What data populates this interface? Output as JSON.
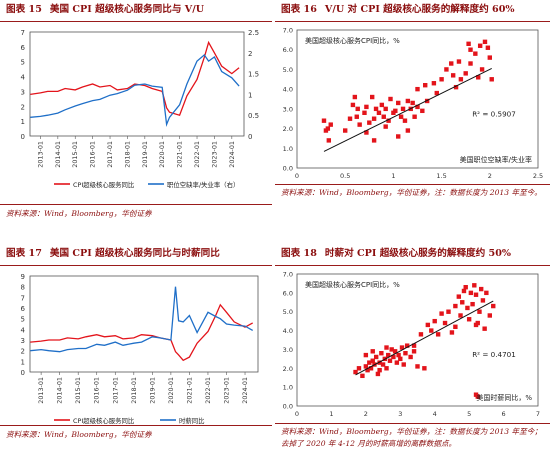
{
  "panels": [
    {
      "number": "图表 15",
      "title": "美国 CPI 超级核心服务同比与 V/U",
      "source": "资料来源：Wind，Bloomberg，华创证券",
      "chart_data": {
        "type": "line",
        "x": [
          "2012-06",
          "2013-01",
          "2013-06",
          "2014-01",
          "2014-06",
          "2015-01",
          "2015-06",
          "2016-01",
          "2016-06",
          "2017-01",
          "2017-06",
          "2018-01",
          "2018-06",
          "2019-01",
          "2019-06",
          "2020-01",
          "2020-04",
          "2020-06",
          "2021-01",
          "2021-06",
          "2022-01",
          "2022-06",
          "2022-09",
          "2023-01",
          "2023-06",
          "2024-01",
          "2024-06"
        ],
        "x_ticks": [
          "2013-01",
          "2014-01",
          "2015-01",
          "2016-01",
          "2017-01",
          "2018-01",
          "2019-01",
          "2020-01",
          "2021-01",
          "2022-01",
          "2023-01",
          "2024-01"
        ],
        "y_left": {
          "ylim": [
            0,
            7
          ],
          "ticks": [
            0,
            1,
            2,
            3,
            4,
            5,
            6,
            7
          ]
        },
        "y_right": {
          "ylim": [
            0,
            2.5
          ],
          "ticks": [
            0,
            0.5,
            1,
            1.5,
            2,
            2.5
          ]
        },
        "series": [
          {
            "name": "CPI超级核心服务同比",
            "axis": "left",
            "color": "#e3141b",
            "values": [
              2.8,
              2.9,
              3.0,
              3.0,
              3.2,
              3.1,
              3.3,
              3.5,
              3.3,
              3.4,
              3.1,
              3.2,
              3.5,
              3.4,
              3.2,
              3.0,
              1.9,
              1.6,
              1.4,
              2.7,
              3.8,
              5.3,
              6.3,
              5.6,
              4.7,
              4.2,
              4.6
            ]
          },
          {
            "name": "职位空缺率/失业率（右）",
            "axis": "right",
            "color": "#1f6fc8",
            "values": [
              0.45,
              0.47,
              0.5,
              0.55,
              0.63,
              0.72,
              0.78,
              0.85,
              0.88,
              0.98,
              1.02,
              1.1,
              1.22,
              1.25,
              1.2,
              1.17,
              0.28,
              0.45,
              0.75,
              1.25,
              1.8,
              1.95,
              1.8,
              1.9,
              1.55,
              1.4,
              1.2
            ]
          }
        ]
      }
    },
    {
      "number": "图表 16",
      "title": "V/U 对 CPI 超级核心服务的解释度约 60%",
      "source": "资料来源：Wind，Bloomberg，华创证券，注：数据长度为 2013 年至今。",
      "chart_data": {
        "type": "scatter",
        "ylabel": "美国超级核心服务CPI同比，%",
        "xlabel": "美国职位空缺率/失业率",
        "xlim": [
          0,
          2.5
        ],
        "ylim": [
          0,
          7
        ],
        "x_ticks": [
          0,
          0.5,
          1,
          1.5,
          2,
          2.5
        ],
        "y_ticks": [
          0,
          1,
          2,
          3,
          4,
          5,
          6,
          7
        ],
        "annotation": "R² = 0.5907",
        "trend": {
          "slope": 2.42,
          "intercept": 0.16
        },
        "color": "#e3141b",
        "points": [
          [
            0.3,
            1.9
          ],
          [
            0.32,
            2.0
          ],
          [
            0.35,
            2.2
          ],
          [
            0.28,
            2.4
          ],
          [
            0.33,
            1.4
          ],
          [
            0.5,
            1.9
          ],
          [
            0.55,
            2.5
          ],
          [
            0.58,
            3.2
          ],
          [
            0.6,
            3.6
          ],
          [
            0.62,
            2.6
          ],
          [
            0.65,
            2.2
          ],
          [
            0.63,
            3.0
          ],
          [
            0.7,
            2.8
          ],
          [
            0.72,
            3.1
          ],
          [
            0.75,
            2.3
          ],
          [
            0.78,
            3.6
          ],
          [
            0.8,
            2.5
          ],
          [
            0.82,
            3.0
          ],
          [
            0.85,
            2.8
          ],
          [
            0.88,
            3.2
          ],
          [
            0.9,
            2.6
          ],
          [
            0.92,
            3.0
          ],
          [
            0.95,
            2.4
          ],
          [
            0.97,
            3.5
          ],
          [
            1.0,
            2.8
          ],
          [
            1.02,
            2.9
          ],
          [
            1.05,
            3.3
          ],
          [
            1.08,
            2.6
          ],
          [
            1.1,
            3.0
          ],
          [
            1.12,
            2.4
          ],
          [
            1.15,
            3.4
          ],
          [
            1.18,
            3.0
          ],
          [
            1.2,
            3.3
          ],
          [
            1.22,
            2.6
          ],
          [
            1.25,
            3.1
          ],
          [
            0.8,
            1.4
          ],
          [
            0.72,
            1.8
          ],
          [
            0.92,
            2.1
          ],
          [
            1.05,
            1.6
          ],
          [
            1.15,
            1.9
          ],
          [
            1.3,
            2.9
          ],
          [
            1.35,
            3.4
          ],
          [
            1.25,
            4.0
          ],
          [
            1.33,
            4.2
          ],
          [
            1.42,
            4.3
          ],
          [
            1.5,
            4.5
          ],
          [
            1.45,
            3.8
          ],
          [
            1.55,
            5.0
          ],
          [
            1.6,
            5.3
          ],
          [
            1.65,
            4.1
          ],
          [
            1.7,
            4.5
          ],
          [
            1.75,
            4.8
          ],
          [
            1.8,
            5.3
          ],
          [
            1.85,
            5.8
          ],
          [
            1.9,
            6.2
          ],
          [
            1.95,
            6.4
          ],
          [
            2.0,
            5.6
          ],
          [
            2.02,
            4.5
          ],
          [
            1.92,
            5.0
          ],
          [
            1.88,
            4.6
          ],
          [
            1.78,
            6.3
          ],
          [
            1.8,
            6.0
          ],
          [
            1.98,
            6.1
          ],
          [
            1.62,
            4.7
          ],
          [
            1.68,
            5.4
          ]
        ]
      }
    },
    {
      "number": "图表 17",
      "title": "美国 CPI 超级核心服务同比与时薪同比",
      "source": "资料来源：Wind，Bloomberg，华创证券",
      "chart_data": {
        "type": "line",
        "x": [
          "2012-06",
          "2013-01",
          "2013-06",
          "2014-01",
          "2014-06",
          "2015-01",
          "2015-06",
          "2016-01",
          "2016-06",
          "2017-01",
          "2017-06",
          "2018-01",
          "2018-06",
          "2019-01",
          "2019-06",
          "2020-01",
          "2020-04",
          "2020-06",
          "2020-09",
          "2021-01",
          "2021-06",
          "2022-01",
          "2022-06",
          "2022-09",
          "2023-01",
          "2023-06",
          "2024-01",
          "2024-06"
        ],
        "x_ticks": [
          "2013-01",
          "2014-01",
          "2015-01",
          "2016-01",
          "2017-01",
          "2018-01",
          "2019-01",
          "2020-01",
          "2021-01",
          "2022-01",
          "2023-01",
          "2024-01"
        ],
        "ylim": [
          0,
          9
        ],
        "y_ticks": [
          0,
          1,
          2,
          3,
          4,
          5,
          6,
          7,
          8,
          9
        ],
        "series": [
          {
            "name": "CPI超级核心服务同比",
            "color": "#e3141b",
            "values": [
              2.8,
              2.9,
              3.0,
              3.0,
              3.2,
              3.1,
              3.3,
              3.5,
              3.3,
              3.4,
              3.1,
              3.2,
              3.5,
              3.4,
              3.2,
              3.0,
              1.9,
              1.6,
              1.1,
              1.4,
              2.7,
              3.8,
              5.3,
              6.3,
              5.6,
              4.7,
              4.2,
              4.6
            ]
          },
          {
            "name": "时薪同比",
            "color": "#1f6fc8",
            "values": [
              2.0,
              2.1,
              2.0,
              1.9,
              2.1,
              2.2,
              2.2,
              2.6,
              2.5,
              2.8,
              2.5,
              2.7,
              2.8,
              3.3,
              3.2,
              3.0,
              8.0,
              4.8,
              4.7,
              5.3,
              3.7,
              5.6,
              5.2,
              5.0,
              4.5,
              4.4,
              4.3,
              3.9
            ]
          }
        ]
      }
    },
    {
      "number": "图表 18",
      "title": "时薪对 CPI 超级核心服务的解释度约 50%",
      "source": "资料来源：Wind，Bloomberg，华创证券，注：数据长度为 2013 年至今；去掉了 2020 年 4-12 月的时薪高增的离群数据点。",
      "chart_data": {
        "type": "scatter",
        "ylabel": "美国超级核心服务CPI同比，%",
        "xlabel": "美国时薪同比，%",
        "xlim": [
          0,
          7
        ],
        "ylim": [
          0,
          7
        ],
        "x_ticks": [
          0,
          1,
          2,
          3,
          4,
          5,
          6,
          7
        ],
        "y_ticks": [
          0,
          1,
          2,
          3,
          4,
          5,
          6,
          7
        ],
        "annotation": "R² = 0.4701",
        "trend": {
          "slope": 0.98,
          "intercept": -0.02
        },
        "color": "#e3141b",
        "points": [
          [
            1.7,
            1.8
          ],
          [
            1.8,
            2.0
          ],
          [
            1.9,
            1.6
          ],
          [
            2.0,
            2.1
          ],
          [
            2.05,
            1.9
          ],
          [
            2.1,
            2.3
          ],
          [
            2.15,
            2.0
          ],
          [
            2.2,
            2.4
          ],
          [
            2.25,
            2.2
          ],
          [
            2.3,
            2.6
          ],
          [
            2.35,
            1.7
          ],
          [
            2.4,
            2.3
          ],
          [
            2.45,
            2.8
          ],
          [
            2.5,
            2.2
          ],
          [
            2.55,
            2.5
          ],
          [
            2.6,
            2.0
          ],
          [
            2.65,
            2.7
          ],
          [
            2.7,
            2.4
          ],
          [
            2.75,
            3.0
          ],
          [
            2.8,
            2.6
          ],
          [
            2.85,
            2.9
          ],
          [
            2.9,
            2.3
          ],
          [
            2.95,
            2.7
          ],
          [
            3.0,
            2.5
          ],
          [
            3.05,
            3.1
          ],
          [
            3.1,
            2.2
          ],
          [
            3.15,
            2.8
          ],
          [
            3.2,
            3.2
          ],
          [
            3.3,
            2.6
          ],
          [
            3.4,
            2.9
          ],
          [
            3.5,
            2.1
          ],
          [
            2.0,
            2.7
          ],
          [
            2.2,
            2.9
          ],
          [
            2.4,
            1.9
          ],
          [
            2.6,
            3.1
          ],
          [
            3.4,
            3.2
          ],
          [
            3.7,
            2.0
          ],
          [
            3.9,
            4.0
          ],
          [
            4.0,
            4.5
          ],
          [
            4.1,
            3.8
          ],
          [
            4.2,
            4.9
          ],
          [
            4.3,
            4.4
          ],
          [
            4.4,
            5.0
          ],
          [
            4.5,
            3.9
          ],
          [
            4.6,
            5.3
          ],
          [
            4.6,
            4.2
          ],
          [
            4.7,
            5.8
          ],
          [
            4.75,
            4.8
          ],
          [
            4.8,
            5.5
          ],
          [
            4.85,
            6.1
          ],
          [
            4.9,
            6.3
          ],
          [
            4.95,
            5.2
          ],
          [
            5.0,
            4.6
          ],
          [
            5.05,
            6.0
          ],
          [
            5.1,
            5.4
          ],
          [
            5.15,
            6.4
          ],
          [
            5.2,
            5.9
          ],
          [
            5.25,
            4.4
          ],
          [
            5.3,
            5.0
          ],
          [
            5.35,
            6.2
          ],
          [
            5.4,
            5.6
          ],
          [
            5.45,
            4.1
          ],
          [
            5.5,
            6.0
          ],
          [
            5.6,
            4.8
          ],
          [
            5.7,
            5.3
          ],
          [
            5.2,
            4.3
          ],
          [
            3.6,
            3.8
          ],
          [
            3.8,
            4.3
          ],
          [
            5.2,
            0.6
          ],
          [
            5.25,
            0.5
          ]
        ]
      }
    }
  ]
}
